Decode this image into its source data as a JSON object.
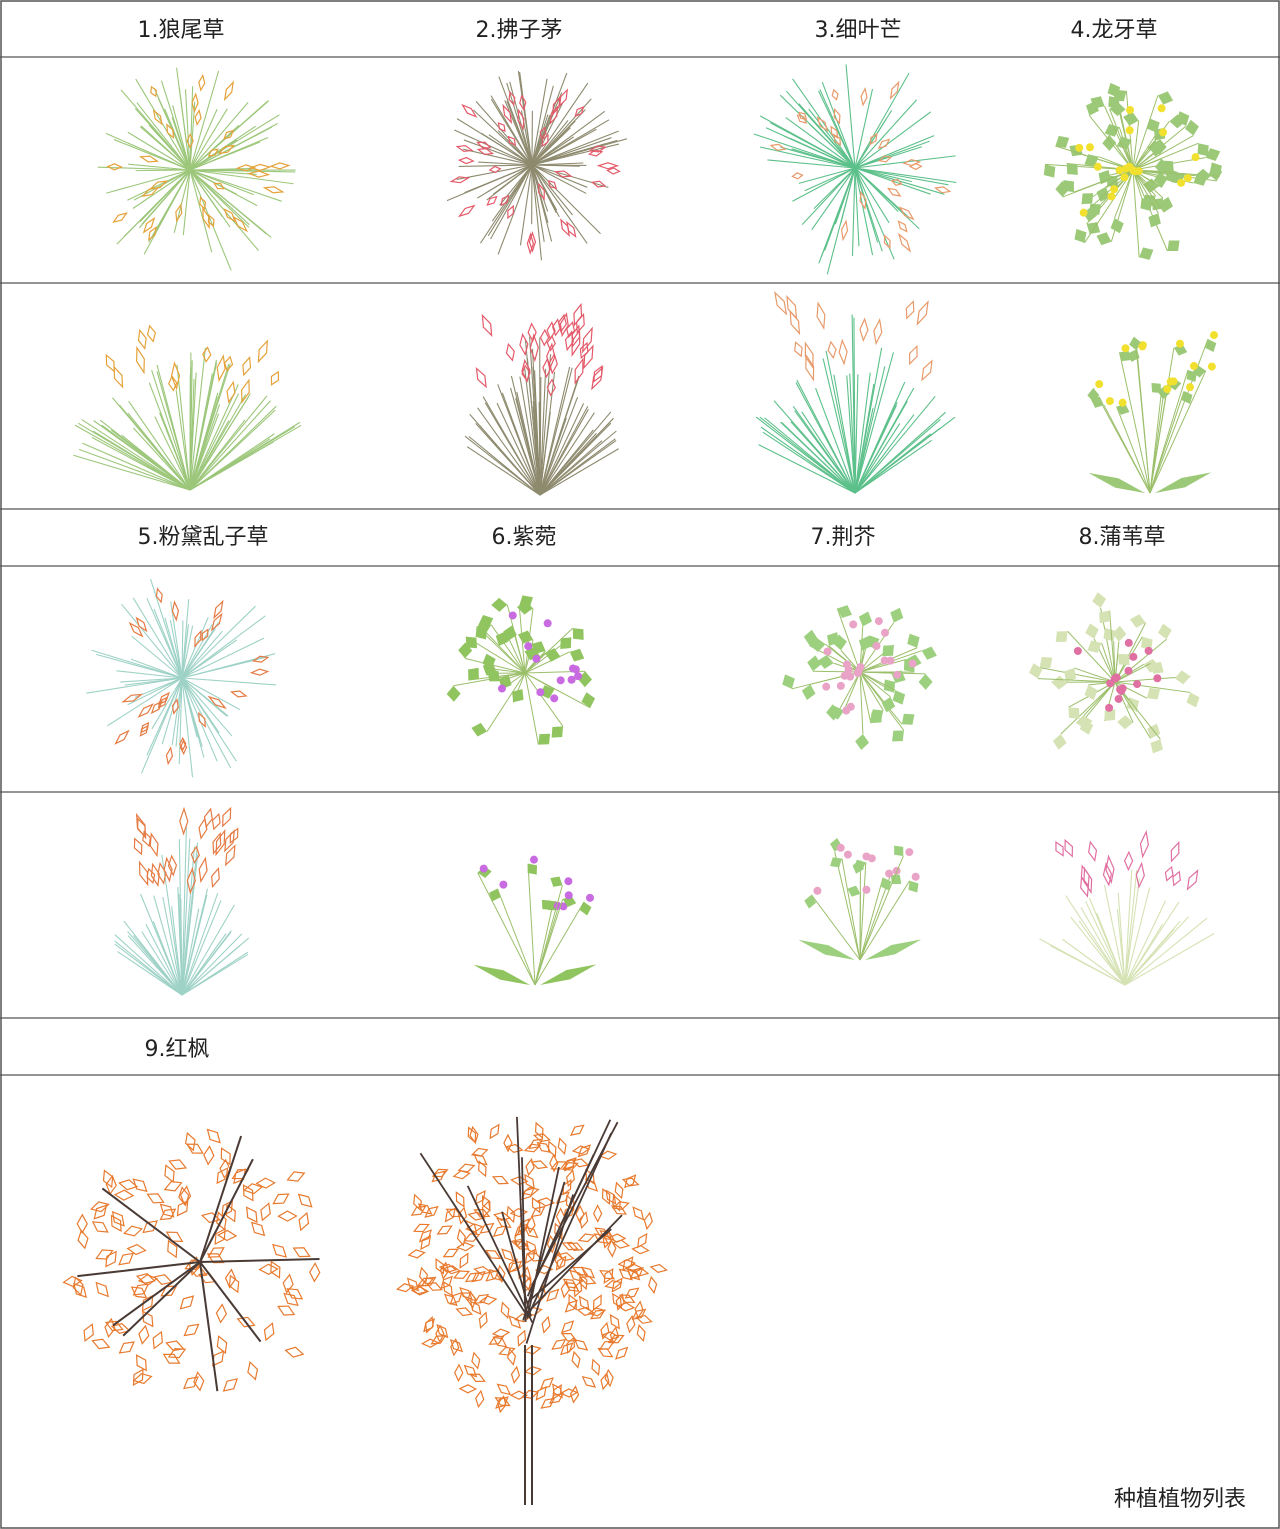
{
  "header": {
    "labels": [
      "1.狼尾草",
      "2.拂子茅",
      "3.细叶芒",
      "4.龙牙草"
    ]
  },
  "middle": {
    "labels": [
      "5.粉黛乱子草",
      "6.紫菀",
      "7.荆芥",
      "8.蒲苇草"
    ]
  },
  "lower": {
    "labels": [
      "9.红枫"
    ]
  },
  "footer": {
    "caption": "种植植物列表"
  }
}
